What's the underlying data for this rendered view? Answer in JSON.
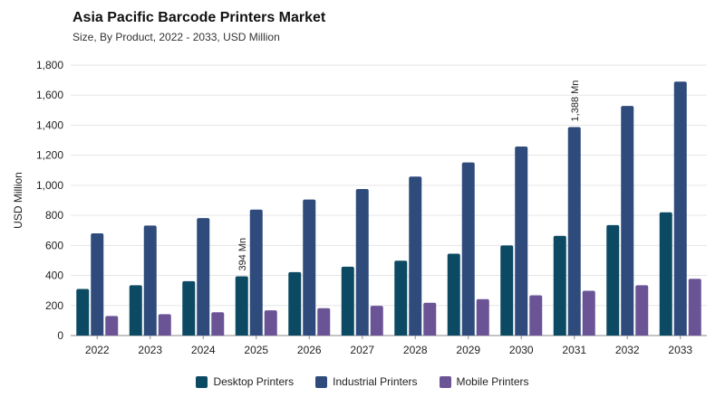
{
  "header": {
    "title": "Asia Pacific Barcode Printers Market",
    "subtitle": "Size, By Product, 2022 - 2033, USD Million"
  },
  "chart_data": {
    "type": "bar",
    "categories": [
      "2022",
      "2023",
      "2024",
      "2025",
      "2026",
      "2027",
      "2028",
      "2029",
      "2030",
      "2031",
      "2032",
      "2033"
    ],
    "series": [
      {
        "name": "Desktop Printers",
        "color": "#0c4a63",
        "values": [
          310,
          335,
          362,
          394,
          422,
          458,
          498,
          545,
          600,
          664,
          735,
          820
        ]
      },
      {
        "name": "Industrial Printers",
        "color": "#2f4b7c",
        "values": [
          680,
          732,
          782,
          838,
          905,
          975,
          1058,
          1152,
          1258,
          1388,
          1528,
          1690
        ]
      },
      {
        "name": "Mobile Printers",
        "color": "#6b5496",
        "values": [
          130,
          142,
          155,
          168,
          182,
          198,
          218,
          242,
          268,
          298,
          335,
          378
        ]
      }
    ],
    "annotations": [
      {
        "series": 0,
        "index": 3,
        "text": "394 Mn"
      },
      {
        "series": 1,
        "index": 9,
        "text": "1,388 Mn"
      }
    ],
    "ylabel": "USD Million",
    "xlabel": "",
    "ylim": [
      0,
      1800
    ],
    "yticks": [
      0,
      200,
      400,
      600,
      800,
      1000,
      1200,
      1400,
      1600,
      1800
    ],
    "ytick_labels": [
      "0",
      "200",
      "400",
      "600",
      "800",
      "1,000",
      "1,200",
      "1,400",
      "1,600",
      "1,800"
    ],
    "grid": true,
    "legend_position": "bottom-center"
  }
}
